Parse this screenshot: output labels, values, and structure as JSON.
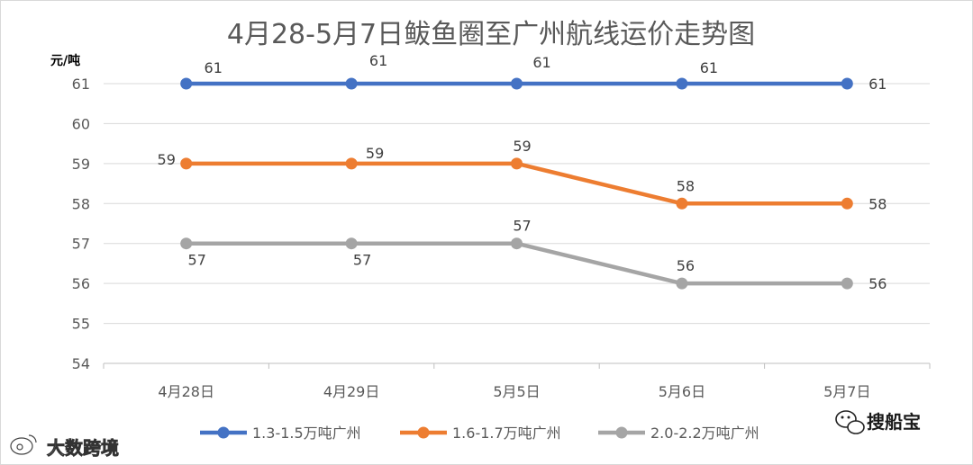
{
  "chart_data": {
    "type": "line",
    "title": "4月28-5月7日鲅鱼圈至广州航线运价走势图",
    "ylabel": "元/吨",
    "xlabel": "",
    "categories": [
      "4月28日",
      "4月29日",
      "5月5日",
      "5月6日",
      "5月7日"
    ],
    "ylim": [
      54,
      61
    ],
    "yticks": [
      54,
      55,
      56,
      57,
      58,
      59,
      60,
      61
    ],
    "grid": true,
    "legend_position": "bottom",
    "series": [
      {
        "name": "1.3-1.5万吨广州",
        "values": [
          61,
          61,
          61,
          61,
          61
        ],
        "color": "#4472C4"
      },
      {
        "name": "1.6-1.7万吨广州",
        "values": [
          59,
          59,
          59,
          58,
          58
        ],
        "color": "#ED7D31"
      },
      {
        "name": "2.0-2.2万吨广州",
        "values": [
          57,
          57,
          57,
          56,
          56
        ],
        "color": "#A5A5A5"
      }
    ]
  },
  "watermarks": {
    "right": "搜船宝",
    "right_icon": "wechat-icon",
    "left": "大数跨境",
    "left_icon": "weibo-icon"
  }
}
